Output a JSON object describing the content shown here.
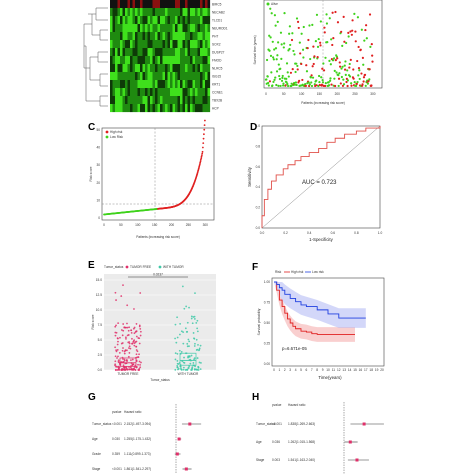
{
  "panels": {
    "A": {
      "gene_labels": [
        "BIRC5",
        "NECAB2",
        "TLCD1",
        "NEUROD1",
        "PHT",
        "SOX2",
        "DUSP27",
        "FMOD",
        "NLRC5",
        "ISG15",
        "KRT1",
        "CCNE1",
        "TBX2B",
        "HCP"
      ]
    },
    "B": {
      "legend_label": "Alive",
      "ylabel": "Survival time (years)",
      "xlabel": "Patients (increasing risk score)",
      "xticks": [
        "0",
        "50",
        "100",
        "150",
        "200",
        "250",
        "300"
      ],
      "yticks": [
        "0",
        "5",
        "10",
        "15"
      ]
    },
    "C": {
      "label": "C",
      "legend": [
        "High risk",
        "Low Risk"
      ],
      "ylabel": "Risk score",
      "xlabel": "Patients (increasing risk score)",
      "xticks": [
        "0",
        "50",
        "100",
        "150",
        "200",
        "250",
        "300"
      ],
      "yticks": [
        "0",
        "10",
        "20",
        "30",
        "40",
        "50"
      ]
    },
    "D": {
      "label": "D",
      "ylabel": "Sensitivity",
      "xlabel": "1-Specificity",
      "auc_text": "AUC = 0.723",
      "ticks": [
        "0.0",
        "0.2",
        "0.4",
        "0.6",
        "0.8",
        "1.0"
      ]
    },
    "E": {
      "label": "E",
      "legend_title": "Tumor_status",
      "legend": [
        "TUMOR FREE",
        "WITH TUMOR"
      ],
      "pvalue": "0.0237",
      "ylabel": "Risk score",
      "xlabel": "Tumor_status",
      "categories": [
        "TUMOR FREE",
        "WITH TUMOR"
      ],
      "yticks": [
        "0.0",
        "2.5",
        "5.0",
        "7.5",
        "10.0",
        "12.5",
        "15.0"
      ]
    },
    "F": {
      "label": "F",
      "legend_title": "Risk",
      "legend": [
        "High risk",
        "Low risk"
      ],
      "pvalue": "p=6.671e-05",
      "ylabel": "Survival probability",
      "xlabel": "Time(years)",
      "yticks": [
        "0.00",
        "0.25",
        "0.50",
        "0.75",
        "1.00"
      ],
      "xticks": [
        "0",
        "1",
        "2",
        "3",
        "4",
        "5",
        "6",
        "7",
        "8",
        "9",
        "10",
        "11",
        "12",
        "13",
        "14",
        "15",
        "16",
        "17",
        "18",
        "19",
        "20"
      ]
    },
    "G": {
      "label": "G",
      "col_headers": [
        "pvalue",
        "Hazard ratio"
      ],
      "rows": [
        {
          "name": "Tumor_status",
          "p": "<0.001",
          "hr": "2.152(1.497-3.094)"
        },
        {
          "name": "Age",
          "p": "0.030",
          "hr": "1.255(1.175-1.432)"
        },
        {
          "name": "Grade",
          "p": "0.359",
          "hr": "1.111(0.899-1.373)"
        },
        {
          "name": "Stage",
          "p": "<0.001",
          "hr": "1.861(1.541-2.297)"
        }
      ]
    },
    "H": {
      "label": "H",
      "col_headers": [
        "pvalue",
        "Hazard ratio"
      ],
      "rows": [
        {
          "name": "Tumor_status",
          "p": "<0.001",
          "hr": "1.838(1.269-2.663)"
        },
        {
          "name": "Age",
          "p": "0.036",
          "hr": "1.262(1.015-1.568)"
        },
        {
          "name": "Stage",
          "p": "0.003",
          "hr": "1.541(1.163-2.040)"
        }
      ]
    }
  },
  "chart_data": [
    {
      "type": "heatmap",
      "panel": "A",
      "rows": [
        "BIRC5",
        "NECAB2",
        "TLCD1",
        "NEUROD1",
        "PHT",
        "SOX2",
        "DUSP27",
        "FMOD",
        "NLRC5",
        "ISG15",
        "KRT1",
        "CCNE1",
        "TBX2B",
        "HCP"
      ],
      "colors": {
        "low": "#3fe01c",
        "mid": "#000000",
        "high": "#e8181b"
      }
    },
    {
      "type": "scatter",
      "panel": "B",
      "xlabel": "Patients (increasing risk score)",
      "ylabel": "Survival time (years)",
      "xlim": [
        0,
        320
      ],
      "ylim": [
        0,
        17
      ],
      "series": [
        {
          "name": "Alive",
          "color": "#3fd21c"
        },
        {
          "color": "#e02020"
        }
      ]
    },
    {
      "type": "scatter",
      "panel": "C",
      "xlabel": "Patients (increasing risk score)",
      "ylabel": "Risk score",
      "xlim": [
        0,
        320
      ],
      "ylim": [
        0,
        50
      ],
      "cutoff_index": 160,
      "series": [
        {
          "name": "High risk",
          "color": "#e02020"
        },
        {
          "name": "Low Risk",
          "color": "#3fd21c"
        }
      ]
    },
    {
      "type": "line",
      "panel": "D",
      "xlabel": "1-Specificity",
      "ylabel": "Sensitivity",
      "xlim": [
        0,
        1
      ],
      "ylim": [
        0,
        1
      ],
      "auc": 0.723,
      "color": "#e0504a",
      "x": [
        0.0,
        0.0,
        0.02,
        0.02,
        0.05,
        0.05,
        0.08,
        0.08,
        0.12,
        0.12,
        0.18,
        0.18,
        0.22,
        0.22,
        0.28,
        0.28,
        0.33,
        0.33,
        0.4,
        0.4,
        0.48,
        0.48,
        0.55,
        0.55,
        0.62,
        0.62,
        0.7,
        0.7,
        0.8,
        0.8,
        0.88,
        0.88,
        1.0,
        1.0
      ],
      "y": [
        0.0,
        0.12,
        0.12,
        0.28,
        0.28,
        0.38,
        0.38,
        0.46,
        0.46,
        0.52,
        0.52,
        0.58,
        0.58,
        0.62,
        0.62,
        0.66,
        0.66,
        0.7,
        0.7,
        0.74,
        0.74,
        0.78,
        0.78,
        0.84,
        0.84,
        0.88,
        0.88,
        0.92,
        0.92,
        0.95,
        0.95,
        0.98,
        0.98,
        1.0
      ]
    },
    {
      "type": "scatter",
      "panel": "E",
      "xlabel": "Tumor_status",
      "ylabel": "Risk score",
      "categories": [
        "TUMOR FREE",
        "WITH TUMOR"
      ],
      "ylim": [
        0,
        15
      ],
      "medians": [
        1.2,
        1.6
      ],
      "q1": [
        0.6,
        0.8
      ],
      "q3": [
        2.0,
        2.8
      ],
      "colors": [
        "#e0306a",
        "#3fc9a8"
      ]
    },
    {
      "type": "line",
      "panel": "F",
      "xlabel": "Time(years)",
      "ylabel": "Survival probability",
      "xlim": [
        0,
        20
      ],
      "ylim": [
        0,
        1
      ],
      "series": [
        {
          "name": "High risk",
          "color": "#e02020",
          "x": [
            0,
            0.5,
            1,
            1.5,
            2,
            2.5,
            3,
            3.5,
            4,
            5,
            6,
            7,
            8,
            10,
            12,
            14,
            15
          ],
          "y": [
            1.0,
            0.9,
            0.78,
            0.7,
            0.62,
            0.55,
            0.5,
            0.46,
            0.43,
            0.4,
            0.39,
            0.37,
            0.36,
            0.36,
            0.36,
            0.36,
            0.36
          ]
        },
        {
          "name": "Low risk",
          "color": "#2040e0",
          "x": [
            0,
            0.5,
            1,
            1.5,
            2,
            3,
            4,
            5,
            6,
            8,
            10,
            12,
            14,
            16,
            17
          ],
          "y": [
            1.0,
            0.97,
            0.93,
            0.9,
            0.85,
            0.8,
            0.76,
            0.72,
            0.7,
            0.66,
            0.61,
            0.56,
            0.56,
            0.56,
            0.56
          ]
        }
      ]
    }
  ]
}
